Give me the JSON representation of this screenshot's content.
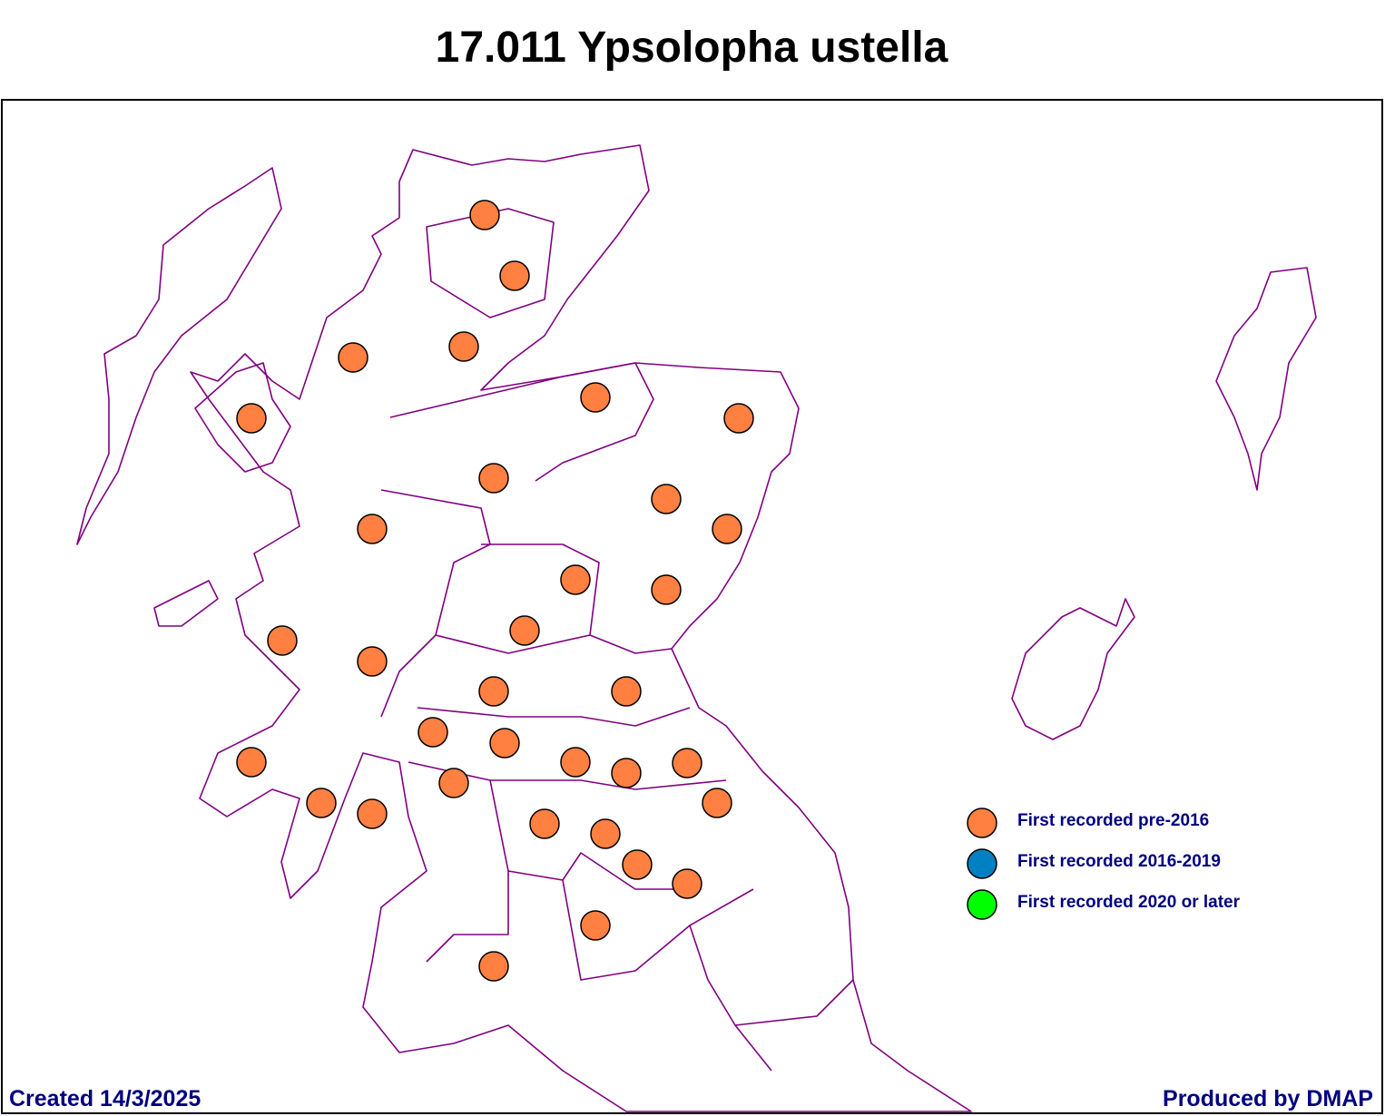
{
  "title": "17.011 Ypsolopha ustella",
  "legend": [
    {
      "label": "First recorded pre-2016",
      "color": "#ff8040"
    },
    {
      "label": "First recorded 2016-2019",
      "color": "#0080c0"
    },
    {
      "label": "First recorded 2020 or later",
      "color": "#00ff00"
    }
  ],
  "footer": {
    "created": "Created 14/3/2025",
    "producer": "Produced by DMAP"
  }
}
